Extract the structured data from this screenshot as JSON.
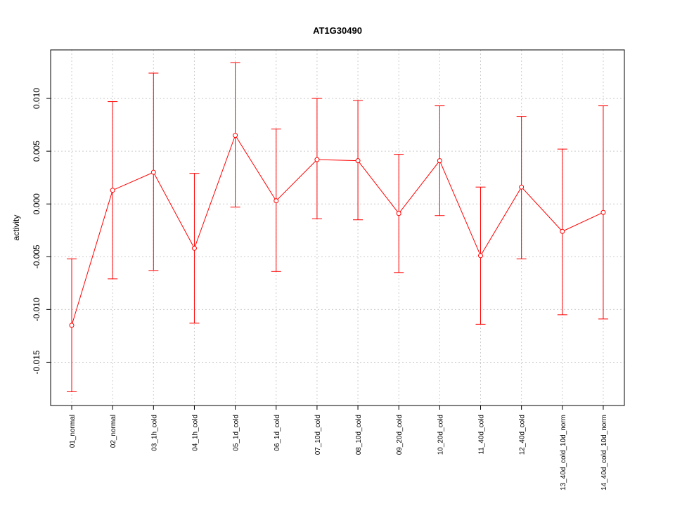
{
  "chart_data": {
    "type": "line",
    "title": "AT1G30490",
    "xlabel": "",
    "ylabel": "activity",
    "ylim": [
      -0.0191,
      0.0146
    ],
    "yticks": [
      -0.015,
      -0.01,
      -0.005,
      0.0,
      0.005,
      0.01
    ],
    "ytick_labels": [
      "-0.015",
      "-0.010",
      "-0.005",
      "0.000",
      "0.005",
      "0.010"
    ],
    "grid": true,
    "series_color": "#ff0000",
    "grid_color": "#cccccc",
    "categories": [
      "01_normal",
      "02_normal",
      "03_1h_cold",
      "04_1h_cold",
      "05_1d_cold",
      "06_1d_cold",
      "07_10d_cold",
      "08_10d_cold",
      "09_20d_cold",
      "10_20d_cold",
      "11_40d_cold",
      "12_40d_cold",
      "13_40d_cold_10d_norm",
      "14_40d_cold_10d_norm"
    ],
    "values": [
      -0.0115,
      0.0013,
      0.003,
      -0.0042,
      0.0065,
      0.0003,
      0.0042,
      0.0041,
      -0.0009,
      0.0041,
      -0.0049,
      0.0016,
      -0.0026,
      -0.0008
    ],
    "upper": [
      -0.0052,
      0.0097,
      0.0124,
      0.0029,
      0.0134,
      0.0071,
      0.01,
      0.0098,
      0.0047,
      0.0093,
      0.0016,
      0.0083,
      0.0052,
      0.0093
    ],
    "lower": [
      -0.0178,
      -0.0071,
      -0.0063,
      -0.0113,
      -0.0003,
      -0.0064,
      -0.0014,
      -0.0015,
      -0.0065,
      -0.0011,
      -0.0114,
      -0.0052,
      -0.0105,
      -0.0109
    ]
  }
}
